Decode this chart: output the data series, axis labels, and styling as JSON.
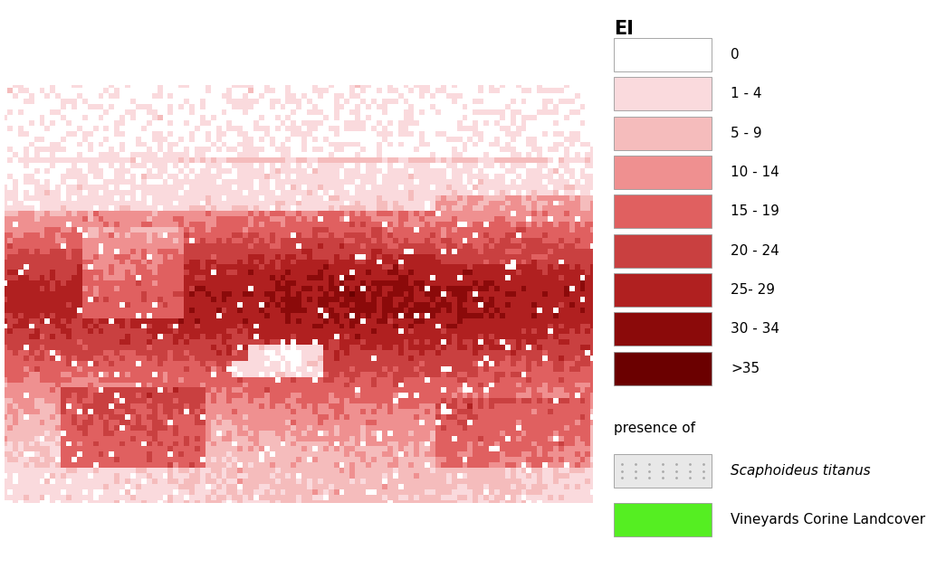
{
  "legend_title": "EI",
  "legend_labels": [
    "0",
    "1 - 4",
    "5 - 9",
    "10 - 14",
    "15 - 19",
    "20 - 24",
    "25- 29",
    "30 - 34",
    ">35"
  ],
  "legend_colors": [
    "#FFFFFF",
    "#FADADD",
    "#F5BCBC",
    "#EF9090",
    "#E06060",
    "#C94040",
    "#B02020",
    "#8B0A0A",
    "#6B0000"
  ],
  "presence_label": "presence of",
  "scaphoideus_label": "Scaphoideus titanus",
  "vineyard_label": "Vineyards Corine Landcover",
  "vineyard_color": "#55EE22",
  "background_color": "#FFFFFF",
  "map_extent_lon": [
    -15,
    40
  ],
  "map_extent_lat": [
    33,
    72
  ],
  "fig_width": 10.24,
  "fig_height": 6.5,
  "dpi": 100
}
